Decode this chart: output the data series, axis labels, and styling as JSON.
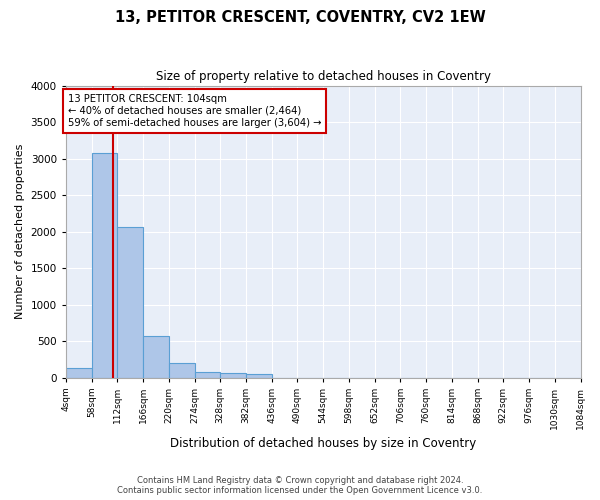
{
  "title": "13, PETITOR CRESCENT, COVENTRY, CV2 1EW",
  "subtitle": "Size of property relative to detached houses in Coventry",
  "xlabel": "Distribution of detached houses by size in Coventry",
  "ylabel": "Number of detached properties",
  "bin_edges": [
    4,
    58,
    112,
    166,
    220,
    274,
    328,
    382,
    436,
    490,
    544,
    598,
    652,
    706,
    760,
    814,
    868,
    922,
    976,
    1030,
    1084
  ],
  "bar_heights": [
    130,
    3070,
    2060,
    570,
    195,
    75,
    55,
    45,
    0,
    0,
    0,
    0,
    0,
    0,
    0,
    0,
    0,
    0,
    0,
    0
  ],
  "bar_color": "#aec6e8",
  "bar_edge_color": "#5a9fd4",
  "property_size": 104,
  "vline_color": "#cc0000",
  "annotation_text": "13 PETITOR CRESCENT: 104sqm\n← 40% of detached houses are smaller (2,464)\n59% of semi-detached houses are larger (3,604) →",
  "annotation_box_color": "#cc0000",
  "ylim": [
    0,
    4000
  ],
  "yticks": [
    0,
    500,
    1000,
    1500,
    2000,
    2500,
    3000,
    3500,
    4000
  ],
  "bg_color": "#e8eef8",
  "grid_color": "#ffffff",
  "footer_line1": "Contains HM Land Registry data © Crown copyright and database right 2024.",
  "footer_line2": "Contains public sector information licensed under the Open Government Licence v3.0."
}
